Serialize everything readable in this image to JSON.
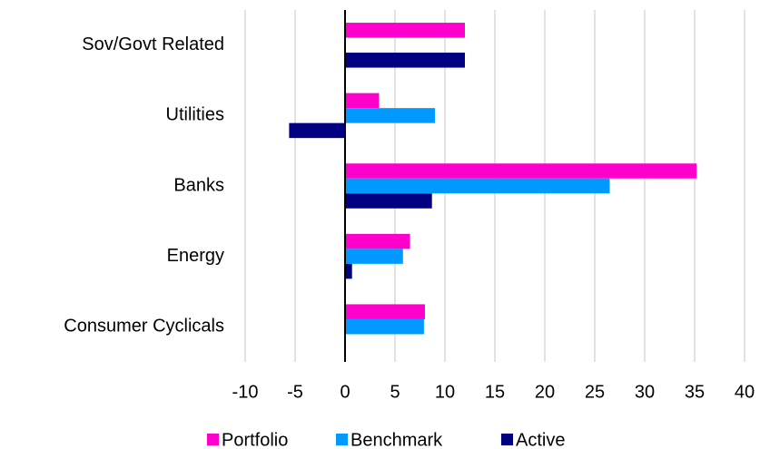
{
  "chart_data": {
    "type": "hbar",
    "categories": [
      "Sov/Govt Related",
      "Utilities",
      "Banks",
      "Energy",
      "Consumer Cyclicals"
    ],
    "series": [
      {
        "name": "Portfolio",
        "color": "#ff00cc",
        "values": [
          12.0,
          3.4,
          35.2,
          6.5,
          8.0
        ]
      },
      {
        "name": "Benchmark",
        "color": "#0099ff",
        "values": [
          0,
          9.0,
          26.5,
          5.8,
          7.9
        ]
      },
      {
        "name": "Active",
        "color": "#000080",
        "values": [
          12.0,
          -5.6,
          8.7,
          0.7,
          0
        ]
      }
    ],
    "xlim": [
      -10,
      40
    ],
    "xticks": [
      -10,
      -5,
      0,
      5,
      10,
      15,
      20,
      25,
      30,
      35,
      40
    ],
    "grid": true,
    "legend": "bottom"
  }
}
